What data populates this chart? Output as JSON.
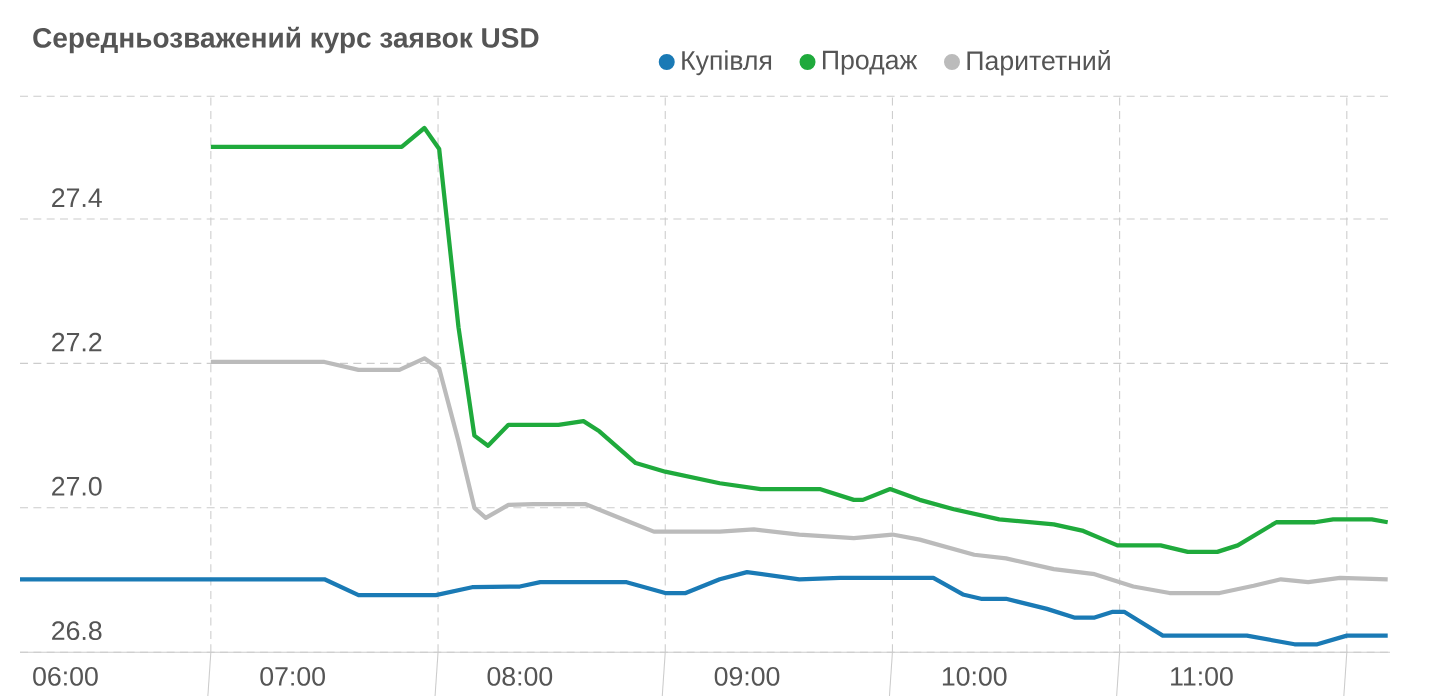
{
  "chart_data": {
    "type": "line",
    "title": "Середньозважений курс заявок USD",
    "xlim": [
      5.8,
      11.83
    ],
    "ylim": [
      26.8,
      27.57
    ],
    "xticks": [
      {
        "value": 6,
        "label": "06:00"
      },
      {
        "value": 6.64,
        "label": null
      },
      {
        "value": 7,
        "label": "07:00"
      },
      {
        "value": 7.64,
        "label": null
      },
      {
        "value": 8,
        "label": "08:00"
      },
      {
        "value": 8.64,
        "label": null
      },
      {
        "value": 9,
        "label": "09:00"
      },
      {
        "value": 9.64,
        "label": null
      },
      {
        "value": 10,
        "label": "10:00"
      },
      {
        "value": 10.64,
        "label": null
      },
      {
        "value": 11,
        "label": "11:00"
      },
      {
        "value": 11.64,
        "label": null
      }
    ],
    "yticks": [
      26.8,
      {
        "value": 27,
        "label": "27.0"
      },
      27.2,
      27.4
    ],
    "grid": true,
    "legend": "top",
    "series": [
      {
        "name": "Купівля",
        "color": "#1a7ab5",
        "x": [
          5.8,
          7.14,
          7.29,
          7.63,
          7.79,
          8.0,
          8.09,
          8.47,
          8.64,
          8.73,
          8.88,
          9.0,
          9.23,
          9.41,
          9.76,
          9.82,
          9.95,
          10.03,
          10.14,
          10.32,
          10.44,
          10.53,
          10.61,
          10.66,
          10.83,
          11.2,
          11.41,
          11.51,
          11.64,
          11.82
        ],
        "values": [
          26.901,
          26.901,
          26.879,
          26.879,
          26.89,
          26.891,
          26.897,
          26.897,
          26.882,
          26.882,
          26.901,
          26.911,
          26.901,
          26.903,
          26.903,
          26.903,
          26.88,
          26.874,
          26.874,
          26.86,
          26.848,
          26.848,
          26.856,
          26.856,
          26.823,
          26.823,
          26.811,
          26.811,
          26.823,
          26.823
        ]
      },
      {
        "name": "Продаж",
        "color": "#1faa3c",
        "x": [
          6.64,
          7.48,
          7.58,
          7.645,
          7.73,
          7.8,
          7.86,
          7.95,
          8.17,
          8.28,
          8.35,
          8.51,
          8.64,
          8.88,
          9.06,
          9.32,
          9.47,
          9.51,
          9.63,
          9.76,
          9.91,
          10.11,
          10.35,
          10.48,
          10.63,
          10.82,
          10.94,
          11.07,
          11.16,
          11.33,
          11.5,
          11.58,
          11.75,
          11.82
        ],
        "values": [
          27.5,
          27.5,
          27.526,
          27.497,
          27.25,
          27.1,
          27.086,
          27.115,
          27.115,
          27.12,
          27.106,
          27.062,
          27.05,
          27.034,
          27.026,
          27.026,
          27.011,
          27.011,
          27.026,
          27.011,
          26.998,
          26.984,
          26.977,
          26.968,
          26.948,
          26.948,
          26.939,
          26.939,
          26.948,
          26.98,
          26.98,
          26.984,
          26.984,
          26.98
        ]
      },
      {
        "name": "Паритетний",
        "color": "#bbbbbb",
        "x": [
          6.64,
          7.14,
          7.29,
          7.47,
          7.58,
          7.645,
          7.73,
          7.8,
          7.85,
          7.95,
          8.06,
          8.29,
          8.47,
          8.59,
          8.88,
          9.03,
          9.23,
          9.47,
          9.64,
          9.76,
          10.0,
          10.14,
          10.35,
          10.53,
          10.7,
          10.86,
          11.08,
          11.23,
          11.35,
          11.47,
          11.61,
          11.82
        ],
        "values": [
          27.202,
          27.202,
          27.191,
          27.191,
          27.207,
          27.193,
          27.092,
          27.0,
          26.986,
          27.004,
          27.005,
          27.005,
          26.982,
          26.967,
          26.967,
          26.97,
          26.963,
          26.958,
          26.963,
          26.956,
          26.935,
          26.93,
          26.915,
          26.908,
          26.891,
          26.882,
          26.882,
          26.892,
          26.901,
          26.897,
          26.903,
          26.901
        ]
      }
    ]
  }
}
